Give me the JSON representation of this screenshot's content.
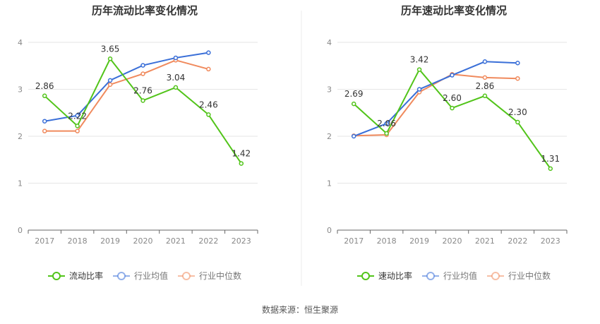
{
  "source_label": "数据来源：恒生聚源",
  "colors": {
    "company": "#52c41a",
    "industry_avg": "#3a6fd8",
    "industry_median": "#f08a5d",
    "axis": "#666666",
    "grid": "#e6e6e6",
    "label": "#333333"
  },
  "chart_data": [
    {
      "type": "line",
      "title": "历年流动比率变化情况",
      "categories": [
        "2017",
        "2018",
        "2019",
        "2020",
        "2021",
        "2022",
        "2023"
      ],
      "ylim": [
        0,
        4
      ],
      "yticks": [
        0,
        1,
        2,
        3,
        4
      ],
      "grid": true,
      "legend": "bottom",
      "series": [
        {
          "name": "流动比率",
          "values": [
            2.86,
            2.22,
            3.65,
            2.76,
            3.04,
            2.46,
            1.42
          ],
          "labels": [
            "2.86",
            "2.22",
            "3.65",
            "2.76",
            "3.04",
            "2.46",
            "1.42"
          ]
        },
        {
          "name": "行业均值",
          "values": [
            2.32,
            2.44,
            3.19,
            3.51,
            3.67,
            3.78,
            null
          ]
        },
        {
          "name": "行业中位数",
          "values": [
            2.11,
            2.11,
            3.1,
            3.33,
            3.62,
            3.43,
            null
          ]
        }
      ]
    },
    {
      "type": "line",
      "title": "历年速动比率变化情况",
      "categories": [
        "2017",
        "2018",
        "2019",
        "2020",
        "2021",
        "2022",
        "2023"
      ],
      "ylim": [
        0,
        4
      ],
      "yticks": [
        0,
        1,
        2,
        3,
        4
      ],
      "grid": true,
      "legend": "bottom",
      "series": [
        {
          "name": "速动比率",
          "values": [
            2.69,
            2.06,
            3.42,
            2.6,
            2.86,
            2.3,
            1.31
          ],
          "labels": [
            "2.69",
            "2.06",
            "3.42",
            "2.60",
            "2.86",
            "2.30",
            "1.31"
          ]
        },
        {
          "name": "行业均值",
          "values": [
            2.0,
            2.27,
            3.0,
            3.3,
            3.59,
            3.56,
            null
          ]
        },
        {
          "name": "行业中位数",
          "values": [
            2.01,
            2.03,
            2.94,
            3.32,
            3.25,
            3.23,
            null
          ]
        }
      ]
    }
  ]
}
